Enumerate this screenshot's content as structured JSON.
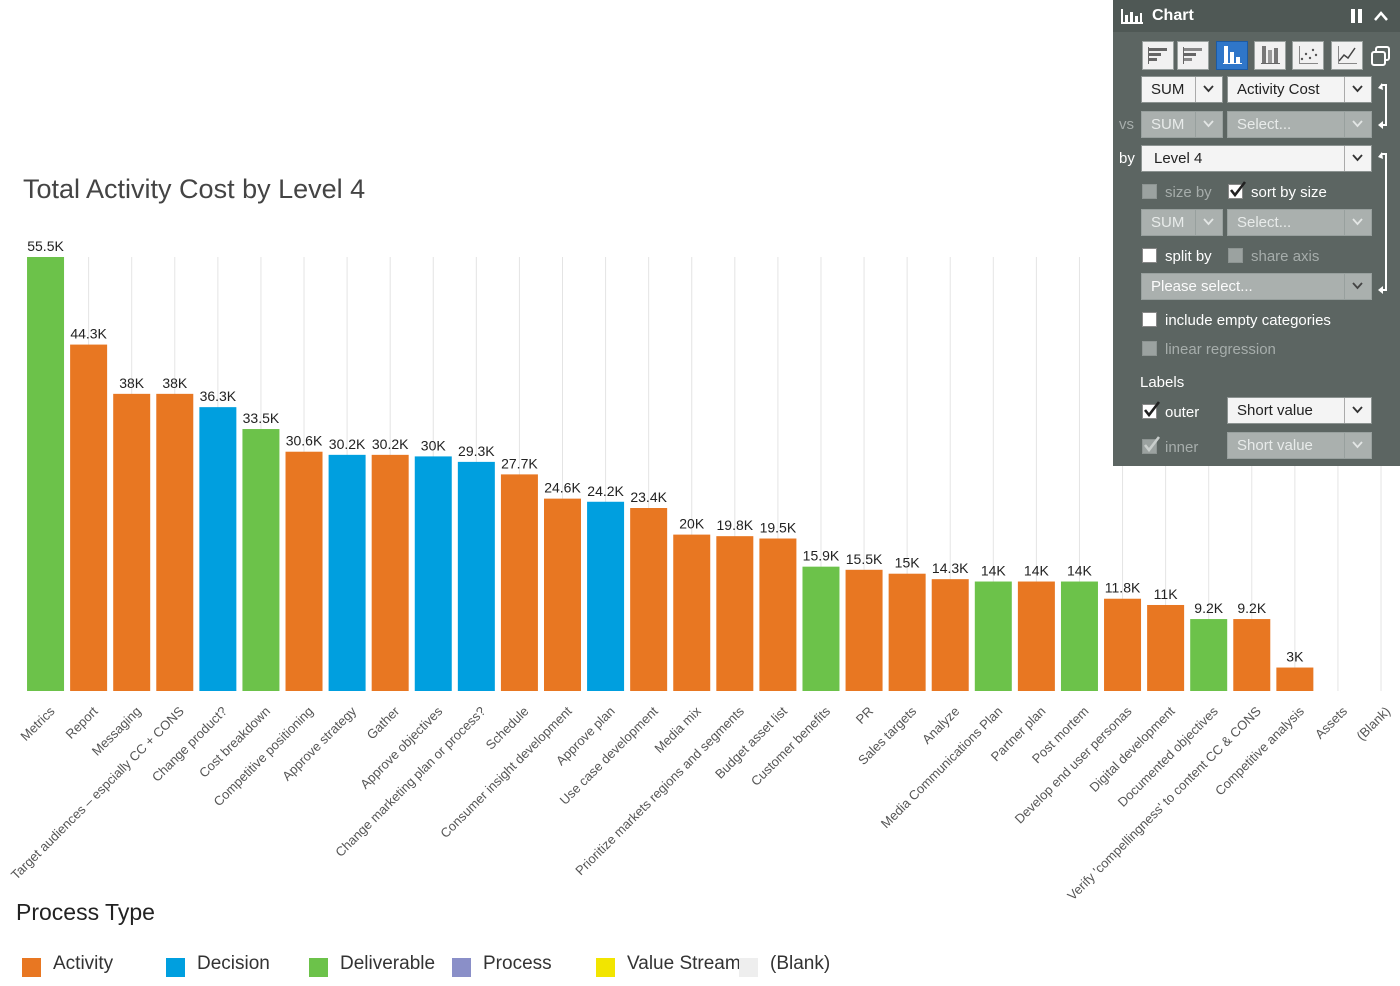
{
  "chart_data": {
    "type": "bar",
    "title": "Total Activity Cost by Level 4",
    "categories": [
      "Metrics",
      "Report",
      "Messaging",
      "Target audiences – espcially CC + CONS",
      "Change product?",
      "Cost breakdown",
      "Competitive positioning",
      "Approve strategy",
      "Gather",
      "Approve objectives",
      "Change marketing plan or process?",
      "Schedule",
      "Consumer insight development",
      "Approve plan",
      "Use case development",
      "Media mix",
      "Prioritize markets regions and segments",
      "Budget asset list",
      "Customer benefits",
      "PR",
      "Sales targets",
      "Analyze",
      "Media Communications Plan",
      "Partner plan",
      "Post mortem",
      "Develop end user personas",
      "Digital development",
      "Documented objectives",
      "Verify 'compellingness'  to content CC & CONS",
      "Competitive analysis",
      "Assets",
      "(Blank)"
    ],
    "values": [
      55500,
      44300,
      38000,
      38000,
      36300,
      33500,
      30600,
      30200,
      30200,
      30000,
      29300,
      27700,
      24600,
      24200,
      23400,
      20000,
      19800,
      19500,
      15900,
      15500,
      15000,
      14300,
      14000,
      14000,
      14000,
      11800,
      11000,
      9200,
      9200,
      3000,
      null,
      null
    ],
    "labels": [
      "55.5K",
      "44.3K",
      "38K",
      "38K",
      "36.3K",
      "33.5K",
      "30.6K",
      "30.2K",
      "30.2K",
      "30K",
      "29.3K",
      "27.7K",
      "24.6K",
      "24.2K",
      "23.4K",
      "20K",
      "19.8K",
      "19.5K",
      "15.9K",
      "15.5K",
      "15K",
      "14.3K",
      "14K",
      "14K",
      "14K",
      "11.8K",
      "11K",
      "9.2K",
      "9.2K",
      "3K",
      "",
      ""
    ],
    "process_types": [
      "Deliverable",
      "Activity",
      "Activity",
      "Activity",
      "Decision",
      "Deliverable",
      "Activity",
      "Decision",
      "Activity",
      "Decision",
      "Decision",
      "Activity",
      "Activity",
      "Decision",
      "Activity",
      "Activity",
      "Activity",
      "Activity",
      "Deliverable",
      "Activity",
      "Activity",
      "Activity",
      "Deliverable",
      "Activity",
      "Deliverable",
      "Activity",
      "Activity",
      "Deliverable",
      "Activity",
      "Activity",
      "",
      ""
    ],
    "ylim": [
      0,
      55500
    ],
    "grid": true,
    "legend": {
      "title": "Process Type",
      "items": [
        {
          "name": "Activity",
          "color": "#e87722"
        },
        {
          "name": "Decision",
          "color": "#009fdf"
        },
        {
          "name": "Deliverable",
          "color": "#6cc24a"
        },
        {
          "name": "Process",
          "color": "#8a8fc8"
        },
        {
          "name": "Value Stream",
          "color": "#f2e500"
        },
        {
          "name": "(Blank)",
          "color": "#eeeeee"
        }
      ]
    }
  },
  "panel": {
    "title": "Chart",
    "title_icon": "bar-chart-icon",
    "pause_icon": "pause-icon",
    "collapse_icon": "chevron-up-icon",
    "chart_types": [
      "horizontal-bar-icon",
      "stacked-horizontal-bar-icon",
      "vertical-bar-icon",
      "stacked-vertical-bar-icon",
      "scatter-icon",
      "line-icon"
    ],
    "copy_icon": "copy-icon",
    "agg1": "SUM",
    "measure1": "Activity Cost",
    "vs_label": "vs",
    "agg2": "SUM",
    "measure2": "Select...",
    "by_label": "by",
    "by_value": "Level 4",
    "size_by_label": "size by",
    "sort_by_size_label": "sort by size",
    "agg3": "SUM",
    "measure3": "Select...",
    "split_by_label": "split by",
    "share_axis_label": "share axis",
    "split_select": "Please select...",
    "include_empty_label": "include empty categories",
    "linear_regression_label": "linear regression",
    "labels_heading": "Labels",
    "outer_label": "outer",
    "outer_value": "Short value",
    "inner_label": "inner",
    "inner_value": "Short value"
  }
}
